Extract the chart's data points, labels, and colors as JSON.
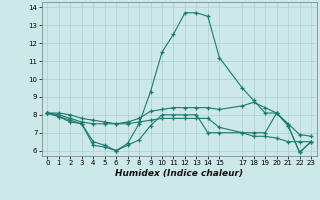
{
  "xlabel": "Humidex (Indice chaleur)",
  "background_color": "#cce8e8",
  "grid_color": "#aed0d0",
  "line_color": "#1a7a6e",
  "x": [
    0,
    1,
    2,
    3,
    4,
    5,
    6,
    7,
    8,
    9,
    10,
    11,
    12,
    13,
    14,
    15,
    17,
    18,
    19,
    20,
    21,
    22,
    23
  ],
  "line1": [
    8.1,
    7.9,
    7.6,
    7.5,
    6.3,
    6.2,
    6.0,
    6.3,
    6.6,
    7.4,
    8.0,
    8.0,
    8.0,
    8.0,
    7.0,
    7.0,
    7.0,
    7.0,
    7.0,
    8.1,
    7.4,
    5.9,
    6.5
  ],
  "line2": [
    8.1,
    7.9,
    7.7,
    7.5,
    6.5,
    6.3,
    6.0,
    6.4,
    7.5,
    9.3,
    11.5,
    12.5,
    13.7,
    13.7,
    13.5,
    11.2,
    9.5,
    8.8,
    8.1,
    8.1,
    7.4,
    5.9,
    6.5
  ],
  "line3": [
    8.1,
    8.1,
    8.0,
    7.8,
    7.7,
    7.6,
    7.5,
    7.6,
    7.8,
    8.2,
    8.3,
    8.4,
    8.4,
    8.4,
    8.4,
    8.3,
    8.5,
    8.7,
    8.4,
    8.1,
    7.5,
    6.9,
    6.8
  ],
  "line4": [
    8.1,
    8.0,
    7.8,
    7.6,
    7.5,
    7.5,
    7.5,
    7.5,
    7.6,
    7.7,
    7.8,
    7.8,
    7.8,
    7.8,
    7.8,
    7.3,
    7.0,
    6.8,
    6.8,
    6.7,
    6.5,
    6.5,
    6.5
  ],
  "ylim": [
    5.7,
    14.3
  ],
  "xlim": [
    -0.5,
    23.5
  ],
  "yticks": [
    6,
    7,
    8,
    9,
    10,
    11,
    12,
    13,
    14
  ],
  "xticks": [
    0,
    1,
    2,
    3,
    4,
    5,
    6,
    7,
    8,
    9,
    10,
    11,
    12,
    13,
    14,
    15,
    17,
    18,
    19,
    20,
    21,
    22,
    23
  ]
}
